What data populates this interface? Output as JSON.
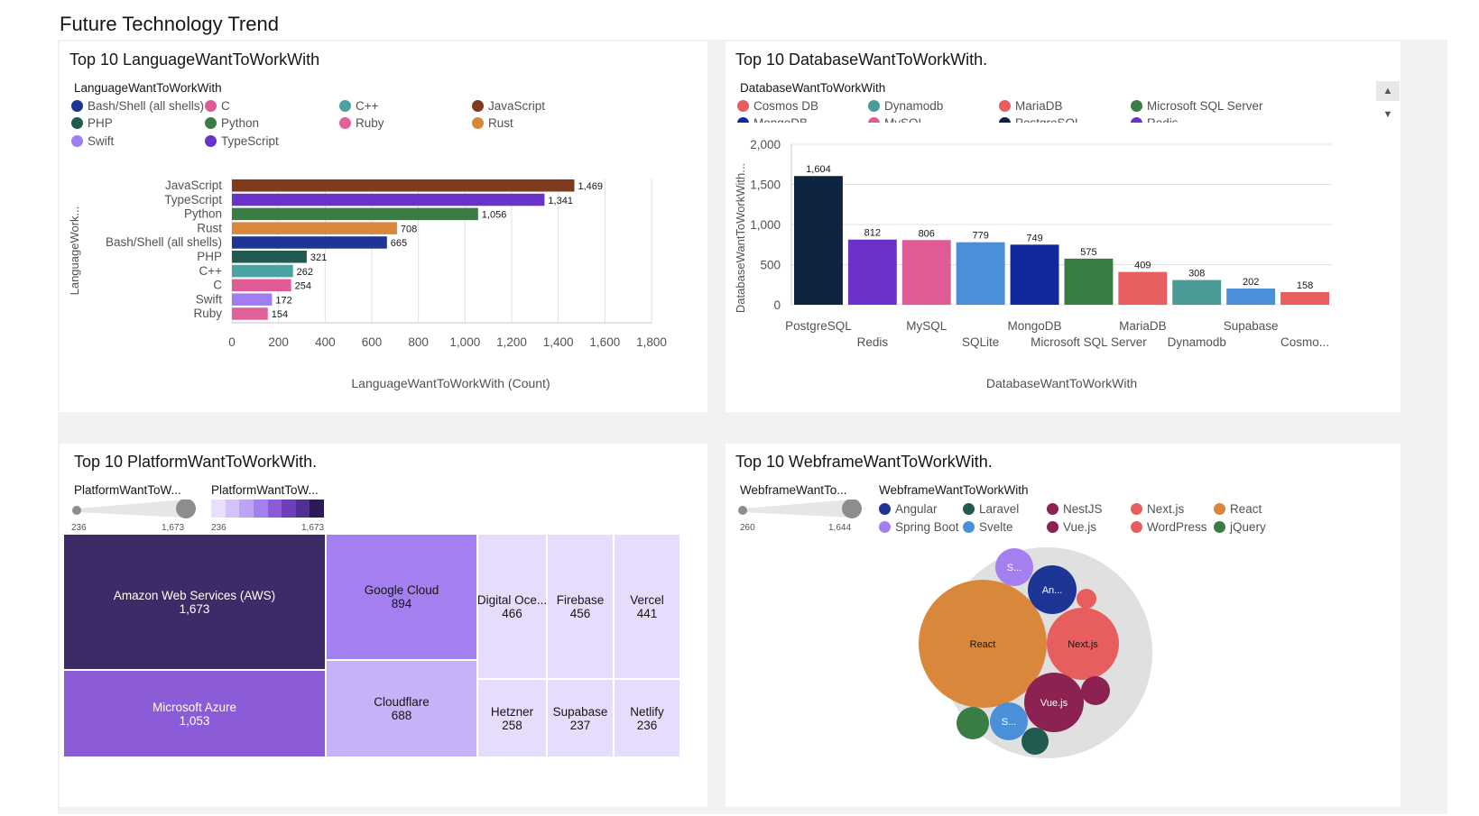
{
  "dashboard": {
    "title": "Future Technology Trend"
  },
  "colors": {
    "panel_bg": "#ffffff",
    "band_bg": "#f2f2f2"
  },
  "language_panel": {
    "title": "Top 10 LanguageWantToWorkWith",
    "legend_title": "LanguageWantToWorkWith",
    "legend": [
      {
        "label": "Bash/Shell (all shells)",
        "color": "#1d3594"
      },
      {
        "label": "C",
        "color": "#de5b96"
      },
      {
        "label": "C++",
        "color": "#4aa3a0"
      },
      {
        "label": "JavaScript",
        "color": "#7f3b1c"
      },
      {
        "label": "PHP",
        "color": "#205a51"
      },
      {
        "label": "Python",
        "color": "#3a7d44"
      },
      {
        "label": "Ruby",
        "color": "#df6198"
      },
      {
        "label": "Rust",
        "color": "#d9873a"
      },
      {
        "label": "Swift",
        "color": "#a07ef0"
      },
      {
        "label": "TypeScript",
        "color": "#6a32c9"
      }
    ]
  },
  "database_panel": {
    "title": "Top 10 DatabaseWantToWorkWith.",
    "legend_title": "DatabaseWantToWorkWith",
    "legend": [
      {
        "label": "Cosmos DB",
        "color": "#e85d5d"
      },
      {
        "label": "Dynamodb",
        "color": "#4a9b95"
      },
      {
        "label": "MariaDB",
        "color": "#e85d5d"
      },
      {
        "label": "Microsoft SQL Server",
        "color": "#3a7d44"
      },
      {
        "label": "MongoDB",
        "color": "#11299a"
      },
      {
        "label": "MySQL",
        "color": "#de5b96"
      },
      {
        "label": "PostgreSQL",
        "color": "#0d2340"
      },
      {
        "label": "Redis",
        "color": "#6a32c9"
      }
    ],
    "scroll_up": "▲",
    "scroll_down": "▼"
  },
  "platform_panel": {
    "title": "Top 10 PlatformWantToWorkWith.",
    "size_legend_title": "PlatformWantToW...",
    "color_legend_title": "PlatformWantToW...",
    "size_min": "236",
    "size_max": "1,673",
    "color_min": "236",
    "color_max": "1,673",
    "items": [
      {
        "label": "Amazon Web Services (AWS)",
        "value_text": "1,673",
        "value": 1673,
        "color": "#3e2a66",
        "text_color": "#ffffff"
      },
      {
        "label": "Microsoft Azure",
        "value_text": "1,053",
        "value": 1053,
        "color": "#8c5bd8",
        "text_color": "#ffffff"
      },
      {
        "label": "Google Cloud",
        "value_text": "894",
        "value": 894,
        "color": "#a47ff0",
        "text_color": "#161616"
      },
      {
        "label": "Cloudflare",
        "value_text": "688",
        "value": 688,
        "color": "#c7b1f7",
        "text_color": "#161616"
      },
      {
        "label": "Digital Oce...",
        "value_text": "466",
        "value": 466,
        "color": "#e6dcfb",
        "text_color": "#161616"
      },
      {
        "label": "Firebase",
        "value_text": "456",
        "value": 456,
        "color": "#e6dcfb",
        "text_color": "#161616"
      },
      {
        "label": "Vercel",
        "value_text": "441",
        "value": 441,
        "color": "#e6dcfb",
        "text_color": "#161616"
      },
      {
        "label": "Hetzner",
        "value_text": "258",
        "value": 258,
        "color": "#e6dcfb",
        "text_color": "#161616"
      },
      {
        "label": "Supabase",
        "value_text": "237",
        "value": 237,
        "color": "#e6dcfb",
        "text_color": "#161616"
      },
      {
        "label": "Netlify",
        "value_text": "236",
        "value": 236,
        "color": "#e6dcfb",
        "text_color": "#161616"
      }
    ]
  },
  "webframe_panel": {
    "title": "Top 10 WebframeWantToWorkWith.",
    "size_legend_title": "WebframeWantTo...",
    "legend_title": "WebframeWantToWorkWith",
    "size_min": "260",
    "size_max": "1,644",
    "legend": [
      {
        "label": "Angular",
        "color": "#1d3594"
      },
      {
        "label": "Laravel",
        "color": "#205a51"
      },
      {
        "label": "NestJS",
        "color": "#8b2252"
      },
      {
        "label": "Next.js",
        "color": "#e85d5d"
      },
      {
        "label": "React",
        "color": "#d9873a"
      },
      {
        "label": "Spring Boot",
        "color": "#a47ff0"
      },
      {
        "label": "Svelte",
        "color": "#4a90d9"
      },
      {
        "label": "Vue.js",
        "color": "#8b2252"
      },
      {
        "label": "WordPress",
        "color": "#e85d5d"
      },
      {
        "label": "jQuery",
        "color": "#3a7d44"
      }
    ]
  },
  "chart_data": [
    {
      "type": "bar",
      "orientation": "horizontal",
      "title": "Top 10 LanguageWantToWorkWith",
      "xlabel": "LanguageWantToWorkWith (Count)",
      "ylabel": "LanguageWork...",
      "categories": [
        "JavaScript",
        "TypeScript",
        "Python",
        "Rust",
        "Bash/Shell (all shells)",
        "PHP",
        "C++",
        "C",
        "Swift",
        "Ruby"
      ],
      "values": [
        1469,
        1341,
        1056,
        708,
        665,
        321,
        262,
        254,
        172,
        154
      ],
      "value_labels": [
        "1,469",
        "1,341",
        "1,056",
        "708",
        "665",
        "321",
        "262",
        "254",
        "172",
        "154"
      ],
      "colors": [
        "#7f3b1c",
        "#6a32c9",
        "#3a7d44",
        "#d9873a",
        "#1d3594",
        "#205a51",
        "#4aa3a0",
        "#de5b96",
        "#a07ef0",
        "#df6198"
      ],
      "xlim": [
        0,
        1800
      ],
      "xticks": [
        "0",
        "200",
        "400",
        "600",
        "800",
        "1,000",
        "1,200",
        "1,400",
        "1,600",
        "1,800"
      ],
      "grid": true
    },
    {
      "type": "bar",
      "title": "Top 10 DatabaseWantToWorkWith.",
      "xlabel": "DatabaseWantToWorkWith",
      "ylabel": "DatabaseWantToWorkWith...",
      "categories": [
        "PostgreSQL",
        "Redis",
        "MySQL",
        "SQLite",
        "MongoDB",
        "Microsoft SQL Server",
        "MariaDB",
        "Dynamodb",
        "Supabase",
        "Cosmo..."
      ],
      "values": [
        1604,
        812,
        806,
        779,
        749,
        575,
        409,
        308,
        202,
        158
      ],
      "value_labels": [
        "1,604",
        "812",
        "806",
        "779",
        "749",
        "575",
        "409",
        "308",
        "202",
        "158"
      ],
      "colors": [
        "#0d2340",
        "#6a32c9",
        "#de5b96",
        "#4a90d9",
        "#11299a",
        "#3a7d44",
        "#e85d5d",
        "#4a9b95",
        "#4a90d9",
        "#e85d5d"
      ],
      "ylim": [
        0,
        2000
      ],
      "yticks": [
        "0",
        "500",
        "1,000",
        "1,500",
        "2,000"
      ],
      "grid": true
    },
    {
      "type": "treemap",
      "title": "Top 10 PlatformWantToWorkWith.",
      "categories": [
        "Amazon Web Services (AWS)",
        "Microsoft Azure",
        "Google Cloud",
        "Cloudflare",
        "Digital Oce...",
        "Firebase",
        "Vercel",
        "Hetzner",
        "Supabase",
        "Netlify"
      ],
      "values": [
        1673,
        1053,
        894,
        688,
        466,
        456,
        441,
        258,
        237,
        236
      ]
    },
    {
      "type": "bubble",
      "title": "Top 10 WebframeWantToWorkWith.",
      "range": [
        260,
        1644
      ],
      "bubbles": [
        {
          "label": "React",
          "color": "#d9873a"
        },
        {
          "label": "Next.js",
          "color": "#e85d5d"
        },
        {
          "label": "Vue.js",
          "color": "#8b2252"
        },
        {
          "label": "An...",
          "color": "#1d3594"
        },
        {
          "label": "S...",
          "color": "#a47ff0"
        },
        {
          "label": "S...",
          "color": "#4a90d9"
        },
        {
          "label": "",
          "color": "#3a7d44"
        },
        {
          "label": "",
          "color": "#205a51"
        },
        {
          "label": "",
          "color": "#8b2252"
        },
        {
          "label": "",
          "color": "#e85d5d"
        }
      ]
    }
  ]
}
